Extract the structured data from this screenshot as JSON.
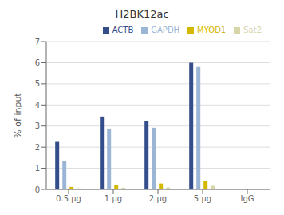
{
  "chart_data": {
    "type": "bar",
    "title": "H2BK12ac",
    "ylabel": "% of input",
    "categories": [
      "0.5 μg",
      "1 μg",
      "2 μg",
      "5 μg",
      "IgG"
    ],
    "series": [
      {
        "name": "ACTB",
        "color": "#344E8B",
        "values": [
          2.25,
          3.45,
          3.25,
          6.0,
          0.0
        ]
      },
      {
        "name": "GAPDH",
        "color": "#9BB5D5",
        "values": [
          1.35,
          2.85,
          2.92,
          5.8,
          0.0
        ]
      },
      {
        "name": "MYOD1",
        "color": "#D4B800",
        "values": [
          0.12,
          0.22,
          0.28,
          0.4,
          0.0
        ]
      },
      {
        "name": "Sat2",
        "color": "#D8D5A8",
        "values": [
          0.05,
          0.08,
          0.09,
          0.17,
          0.0
        ]
      }
    ],
    "ylim": [
      0,
      7
    ],
    "yticks": [
      0,
      1,
      2,
      3,
      4,
      5,
      6,
      7
    ],
    "grid": true,
    "legend": "upper right"
  }
}
